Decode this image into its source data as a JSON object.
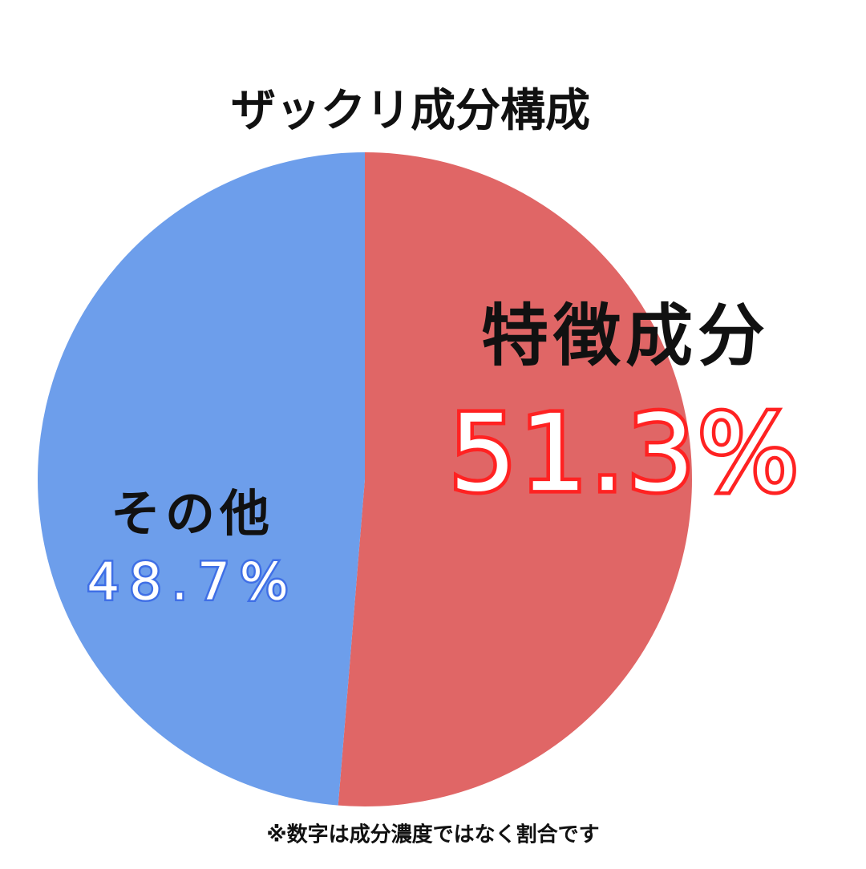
{
  "chart_data": {
    "type": "pie",
    "title": "ザックリ成分構成",
    "categories": [
      "特徴成分",
      "その他"
    ],
    "values": [
      51.3,
      48.7
    ],
    "value_labels": [
      "51.3%",
      "48.7%"
    ],
    "colors": [
      "#e06666",
      "#6d9eeb"
    ],
    "label_colors": [
      "#ff2222",
      "#3f6fe6"
    ],
    "note": "※数字は成分濃度ではなく割合です"
  }
}
